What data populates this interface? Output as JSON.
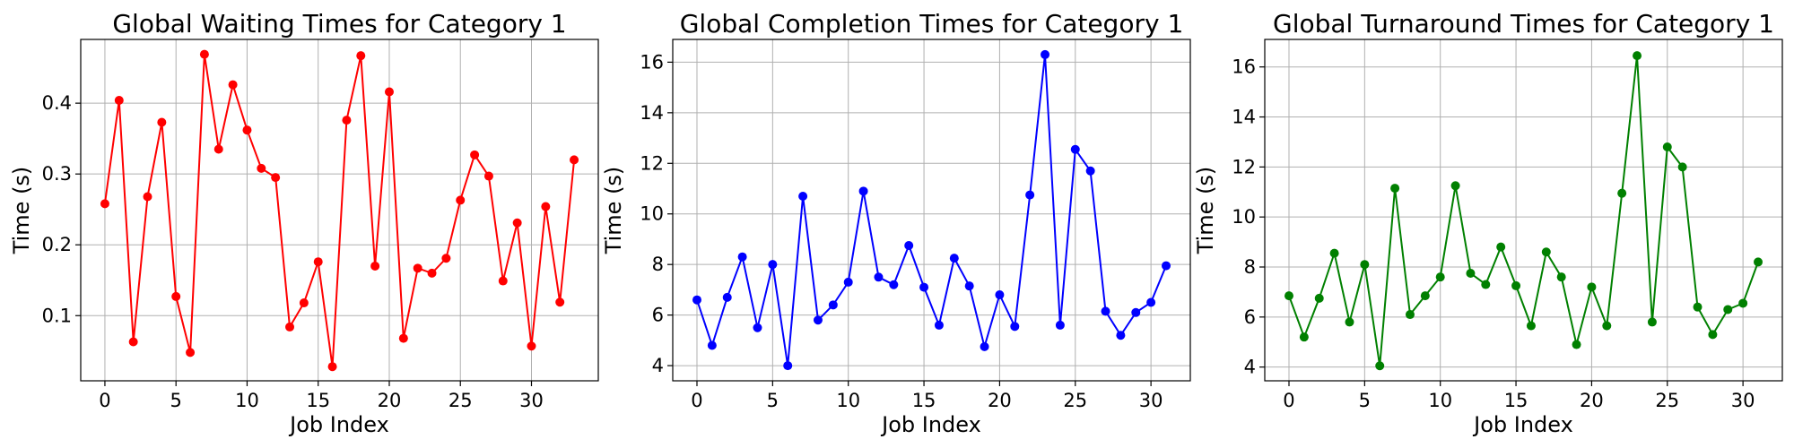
{
  "chart_data": [
    {
      "type": "line",
      "title": "Global Waiting Times for Category 1",
      "xlabel": "Job Index",
      "ylabel": "Time (s)",
      "color": "#ff0000",
      "marker": "circle",
      "grid": true,
      "xlim": [
        -1.7,
        34.7
      ],
      "ylim": [
        0.008,
        0.49
      ],
      "xticks": [
        0,
        5,
        10,
        15,
        20,
        25,
        30
      ],
      "yticks": [
        0.1,
        0.2,
        0.3,
        0.4
      ],
      "ytick_labels": [
        "0.1",
        "0.2",
        "0.3",
        "0.4"
      ],
      "x": [
        0,
        1,
        2,
        3,
        4,
        5,
        6,
        7,
        8,
        9,
        10,
        11,
        12,
        13,
        14,
        15,
        16,
        17,
        18,
        19,
        20,
        21,
        22,
        23,
        24,
        25,
        26,
        27,
        28,
        29,
        30,
        31,
        32,
        33
      ],
      "values": [
        0.258,
        0.404,
        0.063,
        0.268,
        0.373,
        0.127,
        0.048,
        0.469,
        0.335,
        0.426,
        0.362,
        0.308,
        0.295,
        0.084,
        0.118,
        0.176,
        0.028,
        0.376,
        0.467,
        0.17,
        0.416,
        0.068,
        0.167,
        0.16,
        0.181,
        0.263,
        0.327,
        0.297,
        0.149,
        0.231,
        0.057,
        0.254,
        0.119,
        0.32
      ]
    },
    {
      "type": "line",
      "title": "Global Completion Times for Category 1",
      "xlabel": "Job Index",
      "ylabel": "Time (s)",
      "color": "#0000ff",
      "marker": "circle",
      "grid": true,
      "xlim": [
        -1.6,
        32.6
      ],
      "ylim": [
        3.4,
        16.9
      ],
      "xticks": [
        0,
        5,
        10,
        15,
        20,
        25,
        30
      ],
      "yticks": [
        4,
        6,
        8,
        10,
        12,
        14,
        16
      ],
      "ytick_labels": [
        "4",
        "6",
        "8",
        "10",
        "12",
        "14",
        "16"
      ],
      "x": [
        0,
        1,
        2,
        3,
        4,
        5,
        6,
        7,
        8,
        9,
        10,
        11,
        12,
        13,
        14,
        15,
        16,
        17,
        18,
        19,
        20,
        21,
        22,
        23,
        24,
        25,
        26,
        27,
        28,
        29,
        30,
        31
      ],
      "values": [
        6.6,
        4.8,
        6.7,
        8.3,
        5.5,
        8.0,
        4.0,
        10.7,
        5.8,
        6.4,
        7.3,
        10.9,
        7.5,
        7.2,
        8.75,
        7.1,
        5.6,
        8.25,
        7.15,
        4.75,
        6.8,
        5.55,
        10.75,
        16.3,
        5.6,
        12.55,
        11.7,
        6.15,
        5.2,
        6.1,
        6.5,
        7.95
      ]
    },
    {
      "type": "line",
      "title": "Global Turnaround Times for Category 1",
      "xlabel": "Job Index",
      "ylabel": "Time (s)",
      "color": "#008000",
      "marker": "circle",
      "grid": true,
      "xlim": [
        -1.6,
        32.6
      ],
      "ylim": [
        3.45,
        17.1
      ],
      "xticks": [
        0,
        5,
        10,
        15,
        20,
        25,
        30
      ],
      "yticks": [
        4,
        6,
        8,
        10,
        12,
        14,
        16
      ],
      "ytick_labels": [
        "4",
        "6",
        "8",
        "10",
        "12",
        "14",
        "16"
      ],
      "x": [
        0,
        1,
        2,
        3,
        4,
        5,
        6,
        7,
        8,
        9,
        10,
        11,
        12,
        13,
        14,
        15,
        16,
        17,
        18,
        19,
        20,
        21,
        22,
        23,
        24,
        25,
        26,
        27,
        28,
        29,
        30,
        31
      ],
      "values": [
        6.85,
        5.2,
        6.75,
        8.55,
        5.8,
        8.1,
        4.05,
        11.15,
        6.1,
        6.85,
        7.6,
        11.25,
        7.75,
        7.3,
        8.8,
        7.25,
        5.65,
        8.6,
        7.6,
        4.9,
        7.2,
        5.65,
        10.95,
        16.45,
        5.8,
        12.8,
        12.0,
        6.4,
        5.3,
        6.3,
        6.55,
        8.2
      ]
    }
  ]
}
